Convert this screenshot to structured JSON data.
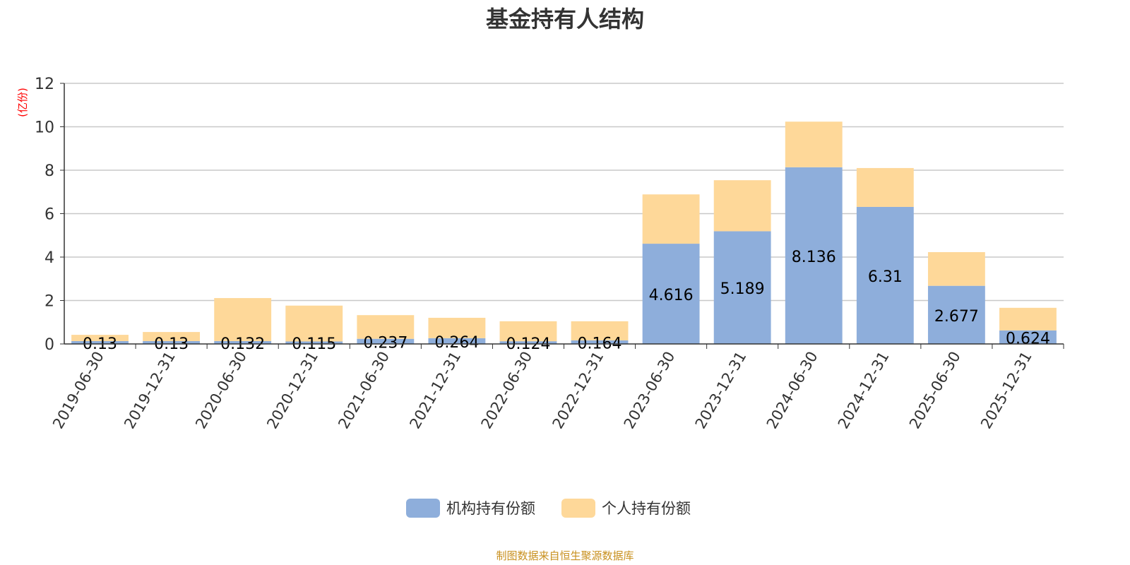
{
  "chart_data": {
    "type": "bar",
    "stacked": true,
    "title": "基金持有人结构",
    "ylabel": "(亿份)",
    "xlabel": "",
    "ylim": [
      0,
      12
    ],
    "yticks": [
      0,
      2,
      4,
      6,
      8,
      10,
      12
    ],
    "grid": true,
    "legend_position": "bottom",
    "categories": [
      "2019-06-30",
      "2019-12-31",
      "2020-06-30",
      "2020-12-31",
      "2021-06-30",
      "2021-12-31",
      "2022-06-30",
      "2022-12-31",
      "2023-06-30",
      "2023-12-31",
      "2024-06-30",
      "2024-12-31",
      "2025-06-30",
      "2025-12-31"
    ],
    "series": [
      {
        "name": "机构持有份额",
        "color": "#8eaedb",
        "values": [
          0.13,
          0.13,
          0.132,
          0.115,
          0.237,
          0.264,
          0.124,
          0.164,
          4.616,
          5.189,
          8.136,
          6.31,
          2.677,
          0.624
        ],
        "labels": [
          "0.13",
          "0.13",
          "0.132",
          "0.115",
          "0.237",
          "0.264",
          "0.124",
          "0.164",
          "4.616",
          "5.189",
          "8.136",
          "6.31",
          "2.677",
          "0.624"
        ]
      },
      {
        "name": "个人持有份额",
        "color": "#fed899",
        "values": [
          0.29,
          0.42,
          1.98,
          1.65,
          1.09,
          0.94,
          0.92,
          0.88,
          2.27,
          2.35,
          2.1,
          1.79,
          1.55,
          1.04
        ]
      }
    ]
  },
  "footer": "制图数据来自恒生聚源数据库"
}
